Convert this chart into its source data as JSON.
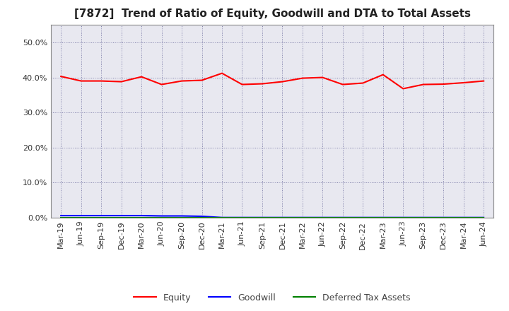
{
  "title": "[7872]  Trend of Ratio of Equity, Goodwill and DTA to Total Assets",
  "labels": [
    "Mar-19",
    "Jun-19",
    "Sep-19",
    "Dec-19",
    "Mar-20",
    "Jun-20",
    "Sep-20",
    "Dec-20",
    "Mar-21",
    "Jun-21",
    "Sep-21",
    "Dec-21",
    "Mar-22",
    "Jun-22",
    "Sep-22",
    "Dec-22",
    "Mar-23",
    "Jun-23",
    "Sep-23",
    "Dec-23",
    "Mar-24",
    "Jun-24"
  ],
  "equity": [
    0.403,
    0.39,
    0.39,
    0.388,
    0.402,
    0.38,
    0.39,
    0.392,
    0.412,
    0.38,
    0.382,
    0.388,
    0.398,
    0.4,
    0.38,
    0.384,
    0.408,
    0.368,
    0.38,
    0.381,
    0.385,
    0.39
  ],
  "goodwill": [
    0.006,
    0.006,
    0.006,
    0.006,
    0.006,
    0.005,
    0.005,
    0.004,
    0.0005,
    0.0005,
    0.0005,
    0.0005,
    0.0005,
    0.0005,
    0.0005,
    0.0005,
    0.0005,
    0.0005,
    0.0005,
    0.0005,
    0.0005,
    0.0005
  ],
  "dta": [
    0.0002,
    0.0002,
    0.0002,
    0.0002,
    0.0002,
    0.0002,
    0.0002,
    0.0002,
    0.0002,
    0.0002,
    0.0002,
    0.0002,
    0.0002,
    0.0002,
    0.0002,
    0.0002,
    0.0002,
    0.0002,
    0.0002,
    0.0002,
    0.0002,
    0.0002
  ],
  "equity_color": "#FF0000",
  "goodwill_color": "#0000FF",
  "dta_color": "#008000",
  "ylim": [
    0,
    0.55
  ],
  "yticks": [
    0.0,
    0.1,
    0.2,
    0.3,
    0.4,
    0.5
  ],
  "background_color": "#FFFFFF",
  "plot_bg_color": "#E8E8F0",
  "grid_color": "#666699",
  "title_fontsize": 11,
  "tick_fontsize": 8,
  "legend_fontsize": 9
}
